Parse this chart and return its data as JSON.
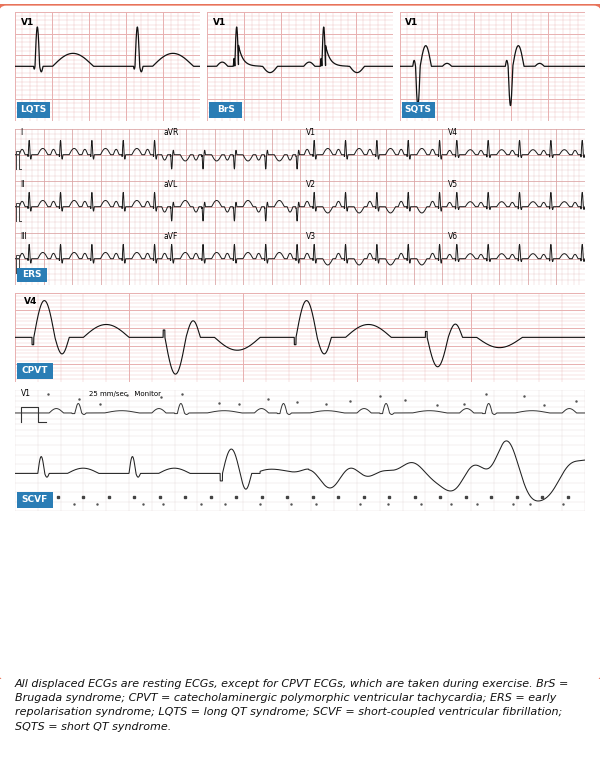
{
  "figure_border_color": "#E8735A",
  "figure_bg": "#ffffff",
  "ecg_bg_pink": "#fce8e8",
  "ecg_bg_pink2": "#faeaea",
  "ecg_bg_white": "#fdf5f5",
  "ecg_grid_minor": "#e8b0b0",
  "ecg_grid_major": "#d88888",
  "ecg_line_color": "#111111",
  "label_bg": "#2a7db5",
  "label_text": "#ffffff",
  "labels": [
    "LQTS",
    "BrS",
    "SQTS",
    "ERS",
    "CPVT",
    "SCVF"
  ],
  "caption": "All displaced ECGs are resting ECGs, except for CPVT ECGs, which are taken during exercise. BrS =\nBrugada syndrome; CPVT = catecholaminergic polymorphic ventricular tachycardia; ERS = early\nrepolarisation syndrome; LQTS = long QT syndrome; SCVF = short-coupled ventricular fibrillation;\nSQTS = short QT syndrome.",
  "caption_fontsize": 8.0,
  "ers_lead_labels": [
    "I",
    "aVR",
    "V1",
    "V4",
    "II",
    "aVL",
    "V2",
    "V5",
    "III",
    "aVF",
    "V3",
    "V6"
  ]
}
